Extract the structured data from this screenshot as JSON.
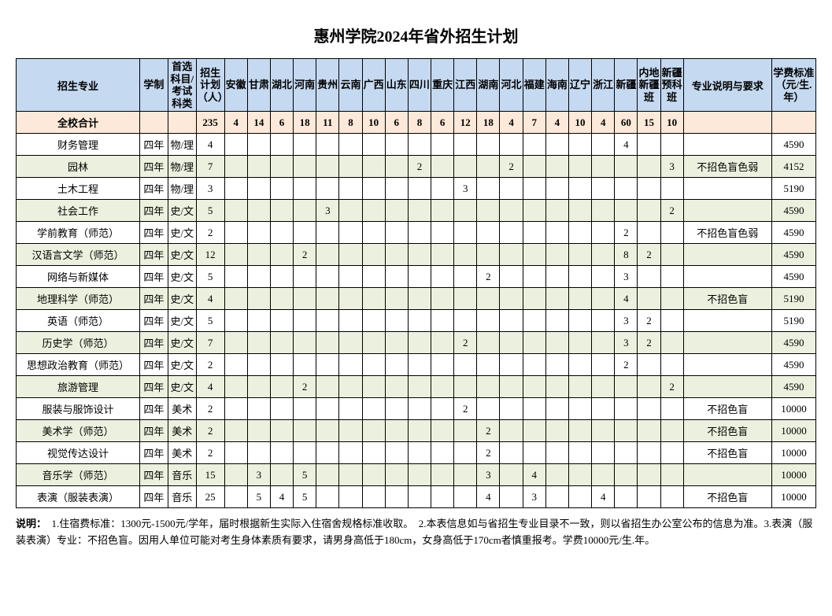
{
  "title": "惠州学院2024年省外招生计划",
  "headers": {
    "major": "招生专业",
    "duration": "学制",
    "subject": "首选科目/考试科类",
    "plan": "招生计划（人）",
    "provinces": [
      "安徽",
      "甘肃",
      "湖北",
      "河南",
      "贵州",
      "云南",
      "广西",
      "山东",
      "四川",
      "重庆",
      "江西",
      "湖南",
      "河北",
      "福建",
      "海南",
      "辽宁",
      "浙江",
      "新疆",
      "内地新疆班",
      "新疆预科班"
    ],
    "desc": "专业说明与要求",
    "fee": "学费标准（元/生.年）"
  },
  "total": {
    "label": "全校合计",
    "plan": "235",
    "values": [
      "4",
      "14",
      "6",
      "18",
      "11",
      "8",
      "10",
      "6",
      "8",
      "6",
      "12",
      "18",
      "4",
      "7",
      "4",
      "10",
      "4",
      "60",
      "15",
      "10"
    ]
  },
  "rows": [
    {
      "major": "财务管理",
      "duration": "四年",
      "subject": "物/理",
      "plan": "4",
      "values": [
        "",
        "",
        "",
        "",
        "",
        "",
        "",
        "",
        "",
        "",
        "",
        "",
        "",
        "",
        "",
        "",
        "",
        "4",
        "",
        ""
      ],
      "desc": "",
      "fee": "4590"
    },
    {
      "major": "园林",
      "duration": "四年",
      "subject": "物/理",
      "plan": "7",
      "values": [
        "",
        "",
        "",
        "",
        "",
        "",
        "",
        "",
        "2",
        "",
        "",
        "",
        "2",
        "",
        "",
        "",
        "",
        "",
        "",
        "3"
      ],
      "desc": "不招色盲色弱",
      "fee": "4152"
    },
    {
      "major": "土木工程",
      "duration": "四年",
      "subject": "物/理",
      "plan": "3",
      "values": [
        "",
        "",
        "",
        "",
        "",
        "",
        "",
        "",
        "",
        "",
        "3",
        "",
        "",
        "",
        "",
        "",
        "",
        "",
        "",
        ""
      ],
      "desc": "",
      "fee": "5190"
    },
    {
      "major": "社会工作",
      "duration": "四年",
      "subject": "史/文",
      "plan": "5",
      "values": [
        "",
        "",
        "",
        "",
        "3",
        "",
        "",
        "",
        "",
        "",
        "",
        "",
        "",
        "",
        "",
        "",
        "",
        "",
        "",
        "2"
      ],
      "desc": "",
      "fee": "4590"
    },
    {
      "major": "学前教育（师范）",
      "duration": "四年",
      "subject": "史/文",
      "plan": "2",
      "values": [
        "",
        "",
        "",
        "",
        "",
        "",
        "",
        "",
        "",
        "",
        "",
        "",
        "",
        "",
        "",
        "",
        "",
        "2",
        "",
        ""
      ],
      "desc": "不招色盲色弱",
      "fee": "4590"
    },
    {
      "major": "汉语言文学（师范）",
      "duration": "四年",
      "subject": "史/文",
      "plan": "12",
      "values": [
        "",
        "",
        "",
        "2",
        "",
        "",
        "",
        "",
        "",
        "",
        "",
        "",
        "",
        "",
        "",
        "",
        "",
        "8",
        "2",
        ""
      ],
      "desc": "",
      "fee": "4590"
    },
    {
      "major": "网络与新媒体",
      "duration": "四年",
      "subject": "史/文",
      "plan": "5",
      "values": [
        "",
        "",
        "",
        "",
        "",
        "",
        "",
        "",
        "",
        "",
        "",
        "2",
        "",
        "",
        "",
        "",
        "",
        "3",
        "",
        ""
      ],
      "desc": "",
      "fee": "4590"
    },
    {
      "major": "地理科学（师范）",
      "duration": "四年",
      "subject": "史/文",
      "plan": "4",
      "values": [
        "",
        "",
        "",
        "",
        "",
        "",
        "",
        "",
        "",
        "",
        "",
        "",
        "",
        "",
        "",
        "",
        "",
        "4",
        "",
        ""
      ],
      "desc": "不招色盲",
      "fee": "5190"
    },
    {
      "major": "英语（师范）",
      "duration": "四年",
      "subject": "史/文",
      "plan": "5",
      "values": [
        "",
        "",
        "",
        "",
        "",
        "",
        "",
        "",
        "",
        "",
        "",
        "",
        "",
        "",
        "",
        "",
        "",
        "3",
        "2",
        ""
      ],
      "desc": "",
      "fee": "5190"
    },
    {
      "major": "历史学（师范）",
      "duration": "四年",
      "subject": "史/文",
      "plan": "7",
      "values": [
        "",
        "",
        "",
        "",
        "",
        "",
        "",
        "",
        "",
        "",
        "2",
        "",
        "",
        "",
        "",
        "",
        "",
        "3",
        "2",
        ""
      ],
      "desc": "",
      "fee": "4590"
    },
    {
      "major": "思想政治教育（师范）",
      "duration": "四年",
      "subject": "史/文",
      "plan": "2",
      "values": [
        "",
        "",
        "",
        "",
        "",
        "",
        "",
        "",
        "",
        "",
        "",
        "",
        "",
        "",
        "",
        "",
        "",
        "2",
        "",
        ""
      ],
      "desc": "",
      "fee": "4590"
    },
    {
      "major": "旅游管理",
      "duration": "四年",
      "subject": "史/文",
      "plan": "4",
      "values": [
        "",
        "",
        "",
        "2",
        "",
        "",
        "",
        "",
        "",
        "",
        "",
        "",
        "",
        "",
        "",
        "",
        "",
        "",
        "",
        "2"
      ],
      "desc": "",
      "fee": "4590"
    },
    {
      "major": "服装与服饰设计",
      "duration": "四年",
      "subject": "美术",
      "plan": "2",
      "values": [
        "",
        "",
        "",
        "",
        "",
        "",
        "",
        "",
        "",
        "",
        "2",
        "",
        "",
        "",
        "",
        "",
        "",
        "",
        "",
        ""
      ],
      "desc": "不招色盲",
      "fee": "10000"
    },
    {
      "major": "美术学（师范）",
      "duration": "四年",
      "subject": "美术",
      "plan": "2",
      "values": [
        "",
        "",
        "",
        "",
        "",
        "",
        "",
        "",
        "",
        "",
        "",
        "2",
        "",
        "",
        "",
        "",
        "",
        "",
        "",
        ""
      ],
      "desc": "不招色盲",
      "fee": "10000"
    },
    {
      "major": "视觉传达设计",
      "duration": "四年",
      "subject": "美术",
      "plan": "2",
      "values": [
        "",
        "",
        "",
        "",
        "",
        "",
        "",
        "",
        "",
        "",
        "",
        "2",
        "",
        "",
        "",
        "",
        "",
        "",
        "",
        ""
      ],
      "desc": "不招色盲",
      "fee": "10000"
    },
    {
      "major": "音乐学（师范）",
      "duration": "四年",
      "subject": "音乐",
      "plan": "15",
      "values": [
        "",
        "3",
        "",
        "5",
        "",
        "",
        "",
        "",
        "",
        "",
        "",
        "3",
        "",
        "4",
        "",
        "",
        "",
        "",
        "",
        ""
      ],
      "desc": "",
      "fee": "10000"
    },
    {
      "major": "表演（服装表演）",
      "duration": "四年",
      "subject": "音乐",
      "plan": "25",
      "values": [
        "",
        "5",
        "4",
        "5",
        "",
        "",
        "",
        "",
        "",
        "",
        "",
        "4",
        "",
        "3",
        "",
        "",
        "4",
        "",
        "",
        ""
      ],
      "desc": "不招色盲",
      "fee": "10000"
    }
  ],
  "footnote": {
    "label": "说明：",
    "text": "　1.住宿费标准：1300元-1500元/学年，届时根据新生实际入住宿舍规格标准收取。　2.本表信息如与省招生专业目录不一致，则以省招生办公室公布的信息为准。3.表演（服装表演）专业：不招色盲。因用人单位可能对考生身体素质有要求，请男身高低于180cm，女身高低于170cm者慎重报考。学费10000元/生.年。"
  }
}
